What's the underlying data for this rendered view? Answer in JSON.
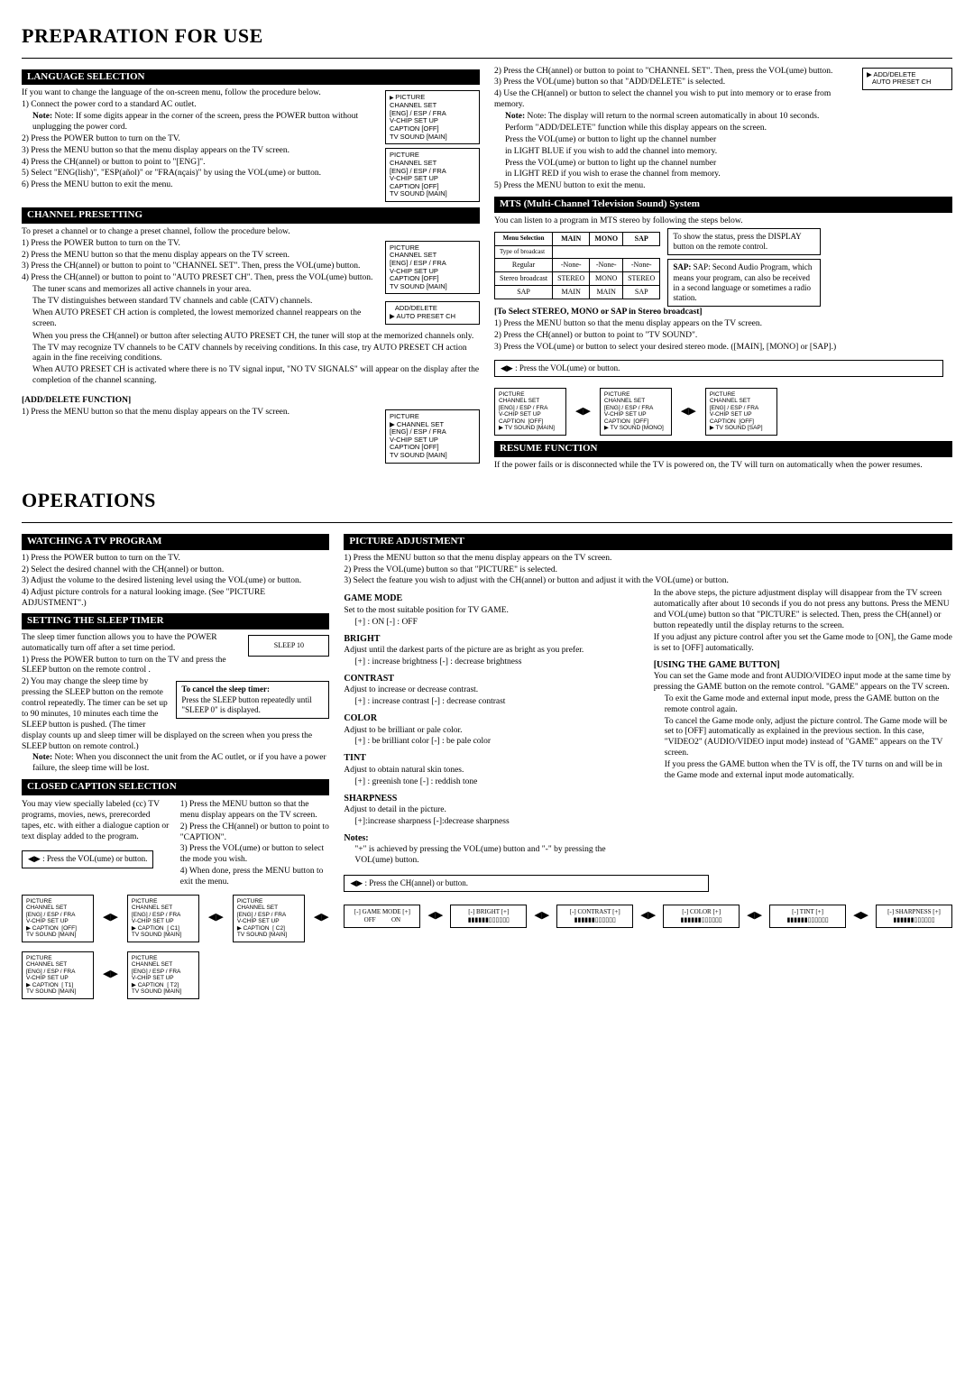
{
  "h1a": "PREPARATION FOR USE",
  "h1b": "OPERATIONS",
  "s": {
    "lang": "LANGUAGE SELECTION",
    "chpre": "CHANNEL PRESETTING",
    "mts": "MTS (Multi-Channel Television Sound) System",
    "resume": "RESUME FUNCTION",
    "watch": "WATCHING A TV PROGRAM",
    "sleep": "SETTING THE SLEEP TIMER",
    "cc": "CLOSED CAPTION SELECTION",
    "pic": "PICTURE ADJUSTMENT"
  },
  "lang": {
    "intro": "If you want to change the language of the on-screen menu, follow the procedure below.",
    "l1": "1) Connect the power cord to a standard AC outlet.",
    "l1n": "Note: If some digits appear in the corner of the screen, press the POWER button without unplugging the power cord.",
    "l2": "2) Press the POWER button to turn on the TV.",
    "l3": "3) Press the MENU button so that the menu display appears on the TV screen.",
    "l4": "4) Press the CH(annel)     or     button to point to \"[ENG]\".",
    "l5": "5) Select \"ENG(lish)\", \"ESP(añol)\" or \"FRA(nçais)\" by using the VOL(ume)     or     button.",
    "l6": "6) Press the MENU button to exit the menu."
  },
  "chpre": {
    "intro": "To preset a channel or to change a preset channel, follow the procedure below.",
    "l1": "1) Press the POWER button to turn on the TV.",
    "l2": "2) Press the MENU button so that the menu display appears on the TV screen.",
    "l3": "3) Press the CH(annel)     or     button to point to \"CHANNEL SET\". Then, press the VOL(ume)     button.",
    "l4": "4) Press the CH(annel)     or     button to point to \"AUTO PRESET CH\". Then, press the VOL(ume)     button.",
    "t1": "The tuner scans and memorizes all active channels in your area.",
    "t2": "The TV distinguishes between standard TV channels and cable (CATV) channels.",
    "t3": "When AUTO PRESET CH action is completed, the lowest memorized channel reappears on the screen.",
    "t4": "When you press the CH(annel)     or     button after selecting AUTO PRESET CH, the tuner will stop at the memorized channels only.",
    "t5": "The TV may recognize TV channels to be CATV channels by receiving conditions. In this case, try AUTO PRESET CH action again in the fine receiving conditions.",
    "t6": "When AUTO PRESET CH is activated where there is no TV signal input, \"NO TV SIGNALS\" will appear on the display after the completion of the channel scanning.",
    "adh": "[ADD/DELETE FUNCTION]",
    "ad1": "1) Press the MENU button so that the menu display appears on the TV screen."
  },
  "right": {
    "r2": "2) Press the CH(annel)     or     button to point to \"CHANNEL SET\". Then, press the VOL(ume)     button.",
    "r3": "3) Press the VOL(ume)     button so that \"ADD/DELETE\" is selected.",
    "r4": "4) Use the CH(annel)     or     button to select the channel you wish to put into memory or to erase from memory.",
    "rn": "Note: The display will return to the normal screen automatically in about 10 seconds.",
    "rp1": "Perform \"ADD/DELETE\" function while this display appears on the screen.",
    "rp2": "Press the VOL(ume)     or     button to light up the channel number",
    "rp3": "in LIGHT BLUE if you wish to add the channel into memory.",
    "rp4": "Press the VOL(ume)     or     button to light up the channel number",
    "rp5": "in LIGHT RED if you wish to erase the channel from memory.",
    "r5": "5) Press the MENU button to exit the menu.",
    "adbox": "▶ ADD/DELETE\n   AUTO PRESET CH"
  },
  "mts": {
    "intro": "You can listen to a program in MTS stereo by following the steps below.",
    "side1": "To show the status, press the DISPLAY button on the remote control.",
    "side2": "SAP: Second Audio Program, which means your program, can also be received in a second language or sometimes a radio station.",
    "th": [
      "Menu Selection",
      "MAIN",
      "MONO",
      "SAP"
    ],
    "rowh": "Type of broadcast",
    "rows": [
      [
        "Regular",
        "-None-",
        "-None-",
        "-None-"
      ],
      [
        "Stereo broadcast",
        "STEREO",
        "MONO",
        "STEREO"
      ],
      [
        "SAP",
        "MAIN",
        "MAIN",
        "SAP"
      ]
    ],
    "selh": "[To Select STEREO, MONO or SAP in Stereo broadcast]",
    "s1": "1) Press the MENU button so that the menu display appears on the TV screen.",
    "s2": "2) Press the CH(annel)     or     button to point to \"TV SOUND\".",
    "s3": "3) Press the VOL(ume)     or     button to select your desired stereo mode. ([MAIN], [MONO] or [SAP].)",
    "vol": "◀▶ : Press the VOL(ume)     or     button."
  },
  "menu": {
    "m1": "PICTURE\nCHANNEL SET\n[ENG] / ESP / FRA\nV-CHIP SET UP\nCAPTION [OFF]\nTV SOUND [MAIN]",
    "m2": "ADD/DELETE\nAUTO PRESET CH",
    "mmain": "PICTURE\nCHANNEL SET\n[ENG] / ESP / FRA\nV-CHIP SET UP\nCAPTION  [OFF]\n▶ TV SOUND [MAIN]",
    "mmono": "PICTURE\nCHANNEL SET\n[ENG] / ESP / FRA\nV-CHIP SET UP\nCAPTION  [OFF]\n▶ TV SOUND [MONO]",
    "msap": "PICTURE\nCHANNEL SET\n[ENG] / ESP / FRA\nV-CHIP SET UP\nCAPTION  [OFF]\n▶ TV SOUND [SAP]"
  },
  "resume": {
    "t": "If the power fails or is disconnected while the TV is powered on, the TV will turn on automatically when the power resumes."
  },
  "watch": {
    "l1": "1) Press the POWER button to turn on the TV.",
    "l2": "2) Select the desired channel with the CH(annel)     or     button.",
    "l3": "3) Adjust the volume to the desired listening level using the VOL(ume)     or     button.",
    "l4": "4) Adjust picture controls for a natural looking image. (See \"PICTURE ADJUSTMENT\".)"
  },
  "sleep": {
    "intro": "The sleep timer function allows you to have the POWER automatically turn off after a set time period.",
    "l1": "1) Press the POWER button to turn on the TV and press the SLEEP button on the remote control .",
    "l2": "2) You may change the sleep time by pressing the SLEEP button on the remote control repeatedly. The timer can be set up to 90 minutes, 10 minutes each time the SLEEP button is pushed. (The timer display counts up and sleep timer will be displayed on the screen when you press the SLEEP button on remote control.)",
    "note": "Note: When you disconnect the unit from the AC outlet, or if you have a power failure, the sleep time will be lost.",
    "cancelh": "To cancel the sleep timer:",
    "cancel": "Press the SLEEP button repeatedly until \"SLEEP 0\" is displayed.",
    "sl10": "SLEEP 10"
  },
  "cc": {
    "intro": "You may view specially labeled (cc) TV programs, movies, news, prerecorded tapes, etc. with either a dialogue caption or text display added to the program.",
    "r1": "1) Press the MENU button so that the menu display appears on the TV screen.",
    "r2": "2) Press the CH(annel)     or     button to point to \"CAPTION\".",
    "r3": "3) Press the VOL(ume)     or     button to select the mode you wish.",
    "r4": "4) When done, press the MENU button to exit the menu.",
    "vol": "◀▶ : Press the VOL(ume)     or     button.",
    "menus": [
      "CAPTION  [OFF]",
      "CAPTION  [ C1]",
      "CAPTION  [ C2]",
      "CAPTION  [ T1]",
      "CAPTION  [ T2]"
    ]
  },
  "pic": {
    "l1": "1) Press the MENU button so that the menu display appears on the TV screen.",
    "l2": "2) Press the VOL(ume)     button so that \"PICTURE\" is selected.",
    "l3": "3) Select the feature you wish to adjust with the CH(annel)     or     button and adjust it with the VOL(ume)     or     button.",
    "gmh": "GAME MODE",
    "gm": "Set to the most suitable position for TV GAME.",
    "gm2": "[+] : ON   [-] : OFF",
    "brh": "BRIGHT",
    "br": "Adjust until the darkest parts of the picture are as bright as you prefer.",
    "br2": "[+] : increase brightness   [-] : decrease brightness",
    "coh": "CONTRAST",
    "co": "Adjust to increase or decrease contrast.",
    "co2": "[+] : increase contrast  [-] : decrease contrast",
    "clh": "COLOR",
    "cl": "Adjust to be brilliant or pale color.",
    "cl2": "[+] : be brilliant color  [-] : be pale color",
    "tih": "TINT",
    "ti": "Adjust to obtain natural skin tones.",
    "ti2": "[+] : greenish tone  [-] : reddish tone",
    "shh": "SHARPNESS",
    "sh": "Adjust to detail in the picture.",
    "sh2": "[+]:increase sharpness [-]:decrease sharpness",
    "noh": "Notes:",
    "no": "\"+\" is achieved by pressing the VOL(ume) button and \"-\" by pressing the VOL(ume) button.",
    "rp1": "In the above steps, the picture adjustment display will disappear from the TV screen automatically after about 10 seconds if you do not press any buttons. Press the MENU and VOL(ume)     button so that \"PICTURE\" is selected. Then, press the CH(annel)     or     button repeatedly until the display returns to the screen.",
    "rp2": "If you adjust any picture control after you set the Game mode to [ON], the Game mode is set to [OFF] automatically.",
    "gbh": "[USING THE GAME BUTTON]",
    "gb1": "You can set the Game mode and front AUDIO/VIDEO input mode at the same time by pressing the GAME button on the remote control. \"GAME\" appears on the TV screen.",
    "gb2": "To exit the Game mode and external input mode, press the GAME button on the remote control again.",
    "gb3": "To cancel the Game mode only, adjust the picture control. The Game mode will be set to [OFF] automatically as explained in the previous section. In this case, \"VIDEO2\" (AUDIO/VIDEO input mode) instead of \"GAME\" appears on the TV screen.",
    "gb4": "If you press the GAME button when the TV is off, the TV turns on and will be in the Game mode and external input mode automatically.",
    "chbtn": "◀▶ : Press the CH(annel)     or     button.",
    "gauges": [
      "GAME MODE",
      "BRIGHT",
      "CONTRAST",
      "COLOR",
      "TINT",
      "SHARPNESS"
    ],
    "g1l": "OFF",
    "g1r": "ON"
  }
}
